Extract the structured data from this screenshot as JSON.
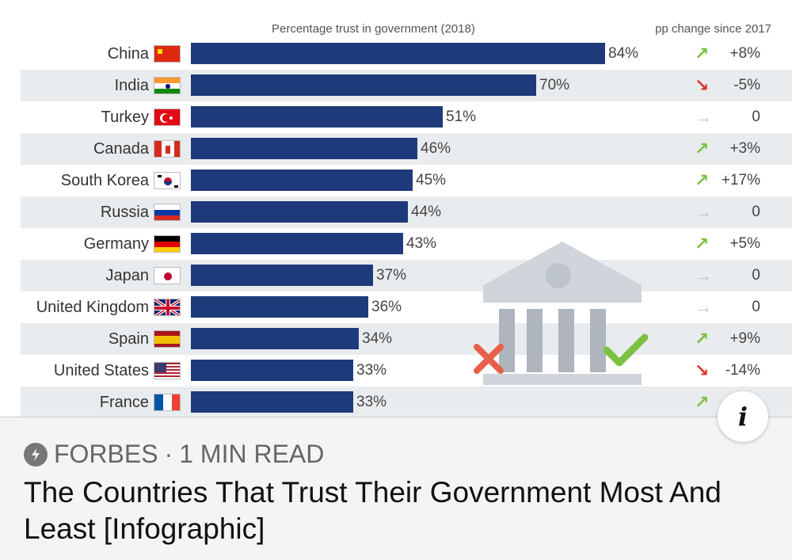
{
  "chart": {
    "col_left_header": "Percentage trust in government (2018)",
    "col_right_header": "pp change since 2017",
    "colors": {
      "bar": "#1f3a7a",
      "up": "#7cc242",
      "down": "#d9362b",
      "flat": "#bfc5cb",
      "band": "#e9ecee"
    }
  },
  "chart_data": {
    "type": "bar",
    "title": "Percentage trust in government (2018)",
    "categories": [
      "China",
      "India",
      "Turkey",
      "Canada",
      "South Korea",
      "Russia",
      "Germany",
      "Japan",
      "United Kingdom",
      "Spain",
      "United States",
      "France"
    ],
    "values": [
      84,
      70,
      51,
      46,
      45,
      44,
      43,
      37,
      36,
      34,
      33,
      33
    ],
    "value_labels": [
      "84%",
      "70%",
      "51%",
      "46%",
      "45%",
      "44%",
      "43%",
      "37%",
      "36%",
      "34%",
      "33%",
      "33%"
    ],
    "change_header": "pp change since 2017",
    "changes": [
      "+8%",
      "-5%",
      "0",
      "+3%",
      "+17%",
      "0",
      "+5%",
      "0",
      "0",
      "+9%",
      "-14%",
      ""
    ],
    "change_direction": [
      "up",
      "down",
      "flat",
      "up",
      "up",
      "flat",
      "up",
      "flat",
      "flat",
      "up",
      "down",
      "up"
    ],
    "xlim": [
      0,
      100
    ]
  },
  "footer": {
    "source": "FORBES",
    "separator": "·",
    "read_time": "1 MIN READ",
    "headline": "The Countries That Trust Their Government Most And Least [Infographic]",
    "info_label": "i"
  }
}
